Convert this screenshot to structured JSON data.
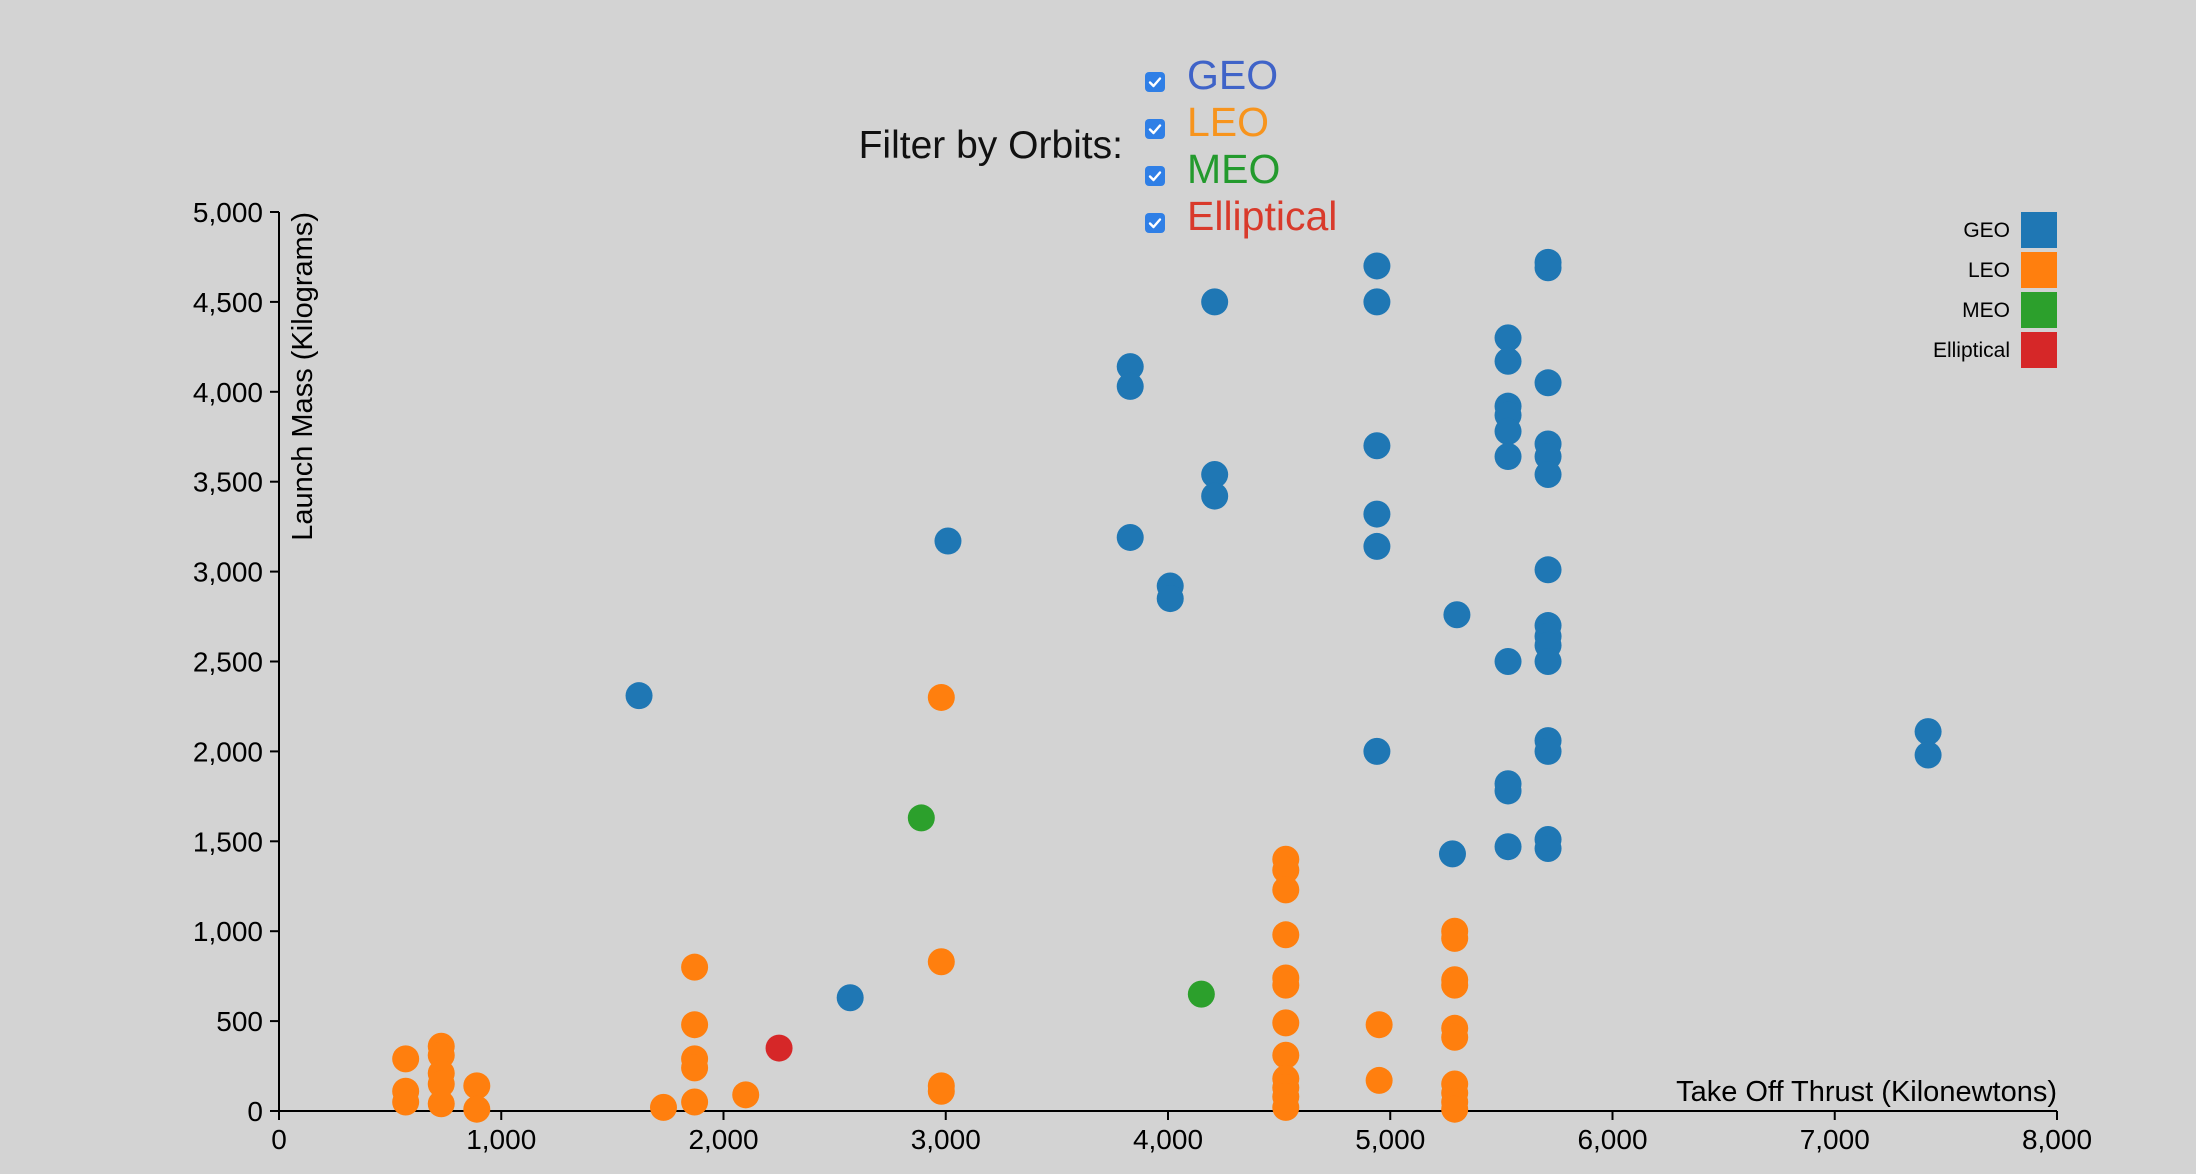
{
  "filter": {
    "title": "Filter by Orbits:",
    "options": [
      {
        "label": "GEO",
        "color": "#3f63c8",
        "checked": true
      },
      {
        "label": "LEO",
        "color": "#f7941d",
        "checked": true
      },
      {
        "label": "MEO",
        "color": "#239a2d",
        "checked": true
      },
      {
        "label": "Elliptical",
        "color": "#d93a2b",
        "checked": true
      }
    ]
  },
  "chart_data": {
    "type": "scatter",
    "xlabel": "Take Off Thrust (Kilonewtons)",
    "ylabel": "Launch Mass (Kilograms)",
    "xlim": [
      0,
      8000
    ],
    "ylim": [
      0,
      5000
    ],
    "xticks": [
      "0",
      "1,000",
      "2,000",
      "3,000",
      "4,000",
      "5,000",
      "6,000",
      "7,000",
      "8,000"
    ],
    "yticks": [
      "0",
      "500",
      "1,000",
      "1,500",
      "2,000",
      "2,500",
      "3,000",
      "3,500",
      "4,000",
      "4,500",
      "5,000"
    ],
    "grid": false,
    "legend_position": "top-right",
    "series": [
      {
        "name": "GEO",
        "color": "#1f77b4",
        "points": [
          [
            1620,
            2310
          ],
          [
            2570,
            630
          ],
          [
            3010,
            3170
          ],
          [
            3830,
            4140
          ],
          [
            3830,
            4030
          ],
          [
            3830,
            3190
          ],
          [
            4010,
            2920
          ],
          [
            4010,
            2850
          ],
          [
            4210,
            4500
          ],
          [
            4210,
            3540
          ],
          [
            4210,
            3420
          ],
          [
            4940,
            4700
          ],
          [
            4940,
            4500
          ],
          [
            4940,
            3700
          ],
          [
            4940,
            3320
          ],
          [
            4940,
            3140
          ],
          [
            4940,
            2000
          ],
          [
            5300,
            2760
          ],
          [
            5280,
            1430
          ],
          [
            5530,
            4300
          ],
          [
            5530,
            4170
          ],
          [
            5530,
            3920
          ],
          [
            5530,
            3870
          ],
          [
            5530,
            3780
          ],
          [
            5530,
            3640
          ],
          [
            5530,
            2500
          ],
          [
            5530,
            1820
          ],
          [
            5530,
            1780
          ],
          [
            5530,
            1470
          ],
          [
            5710,
            4720
          ],
          [
            5710,
            4690
          ],
          [
            5710,
            4050
          ],
          [
            5710,
            3710
          ],
          [
            5710,
            3640
          ],
          [
            5710,
            3540
          ],
          [
            5710,
            3010
          ],
          [
            5710,
            2700
          ],
          [
            5710,
            2640
          ],
          [
            5710,
            2590
          ],
          [
            5710,
            2500
          ],
          [
            5710,
            2060
          ],
          [
            5710,
            2000
          ],
          [
            5710,
            1510
          ],
          [
            5710,
            1460
          ],
          [
            7420,
            2110
          ],
          [
            7420,
            1980
          ]
        ]
      },
      {
        "name": "LEO",
        "color": "#ff7f0e",
        "points": [
          [
            570,
            290
          ],
          [
            570,
            110
          ],
          [
            570,
            50
          ],
          [
            730,
            360
          ],
          [
            730,
            310
          ],
          [
            730,
            210
          ],
          [
            730,
            150
          ],
          [
            730,
            40
          ],
          [
            890,
            140
          ],
          [
            890,
            10
          ],
          [
            1730,
            20
          ],
          [
            1870,
            800
          ],
          [
            1870,
            480
          ],
          [
            1870,
            290
          ],
          [
            1870,
            240
          ],
          [
            1870,
            50
          ],
          [
            2100,
            90
          ],
          [
            2980,
            2300
          ],
          [
            2980,
            830
          ],
          [
            2980,
            140
          ],
          [
            2980,
            110
          ],
          [
            4530,
            1400
          ],
          [
            4530,
            1340
          ],
          [
            4530,
            1230
          ],
          [
            4530,
            980
          ],
          [
            4530,
            740
          ],
          [
            4530,
            700
          ],
          [
            4530,
            490
          ],
          [
            4530,
            310
          ],
          [
            4530,
            180
          ],
          [
            4530,
            130
          ],
          [
            4530,
            80
          ],
          [
            4530,
            20
          ],
          [
            4950,
            480
          ],
          [
            4950,
            170
          ],
          [
            5290,
            1000
          ],
          [
            5290,
            960
          ],
          [
            5290,
            730
          ],
          [
            5290,
            700
          ],
          [
            5290,
            460
          ],
          [
            5290,
            410
          ],
          [
            5290,
            150
          ],
          [
            5290,
            100
          ],
          [
            5290,
            50
          ],
          [
            5290,
            10
          ]
        ]
      },
      {
        "name": "MEO",
        "color": "#2ca02c",
        "points": [
          [
            2890,
            1630
          ],
          [
            4150,
            650
          ]
        ]
      },
      {
        "name": "Elliptical",
        "color": "#d62728",
        "points": [
          [
            2250,
            350
          ]
        ]
      }
    ]
  }
}
